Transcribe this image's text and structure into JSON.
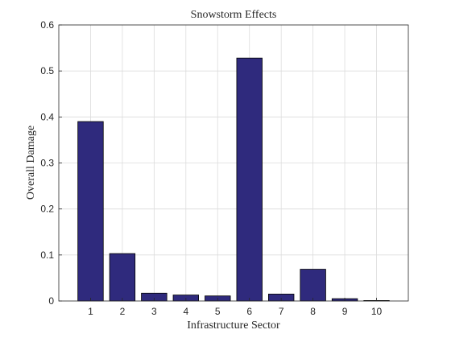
{
  "chart_data": {
    "type": "bar",
    "title": "Snowstorm Effects",
    "xlabel": "Infrastructure Sector",
    "ylabel": "Overall Damage",
    "categories": [
      "1",
      "2",
      "3",
      "4",
      "5",
      "6",
      "7",
      "8",
      "9",
      "10"
    ],
    "values": [
      0.39,
      0.103,
      0.017,
      0.013,
      0.011,
      0.528,
      0.015,
      0.069,
      0.005,
      0.001
    ],
    "xlim": [
      0,
      11
    ],
    "ylim": [
      0,
      0.6
    ],
    "yticks": [
      "0",
      "0.1",
      "0.2",
      "0.3",
      "0.4",
      "0.5",
      "0.6"
    ],
    "grid": true,
    "bar_color": "#2f2a7d",
    "bar_edge_color": "#000000"
  }
}
